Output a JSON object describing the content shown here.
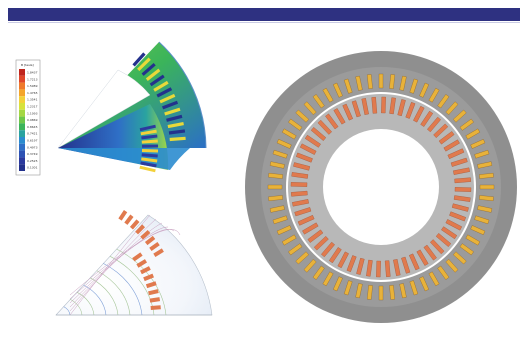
{
  "legend": {
    "title": "B [tesla]",
    "entries": [
      "1.8437",
      "1.7213",
      "1.5989",
      "1.4765",
      "1.3541",
      "1.2317",
      "1.1093",
      "0.9869",
      "0.8645",
      "0.7421",
      "0.6197",
      "0.4973",
      "0.3749",
      "0.2525",
      "0.1301"
    ],
    "colors": [
      "#c0261e",
      "#e0472b",
      "#ef7a2c",
      "#f4a52b",
      "#f3d13a",
      "#d7e23d",
      "#a4d744",
      "#6ec74a",
      "#3bb45a",
      "#2aa3a0",
      "#2b8ccf",
      "#2f6fc6",
      "#2e52b4",
      "#2c3a9e",
      "#23318c"
    ]
  },
  "colors": {
    "header_bar": "#2e3181",
    "stator_gray": "#8a8a8a",
    "rotor_gray": "#b3b3b3",
    "coil_orange": "#e07a4e",
    "magnet_yellow": "#e8b23a"
  }
}
